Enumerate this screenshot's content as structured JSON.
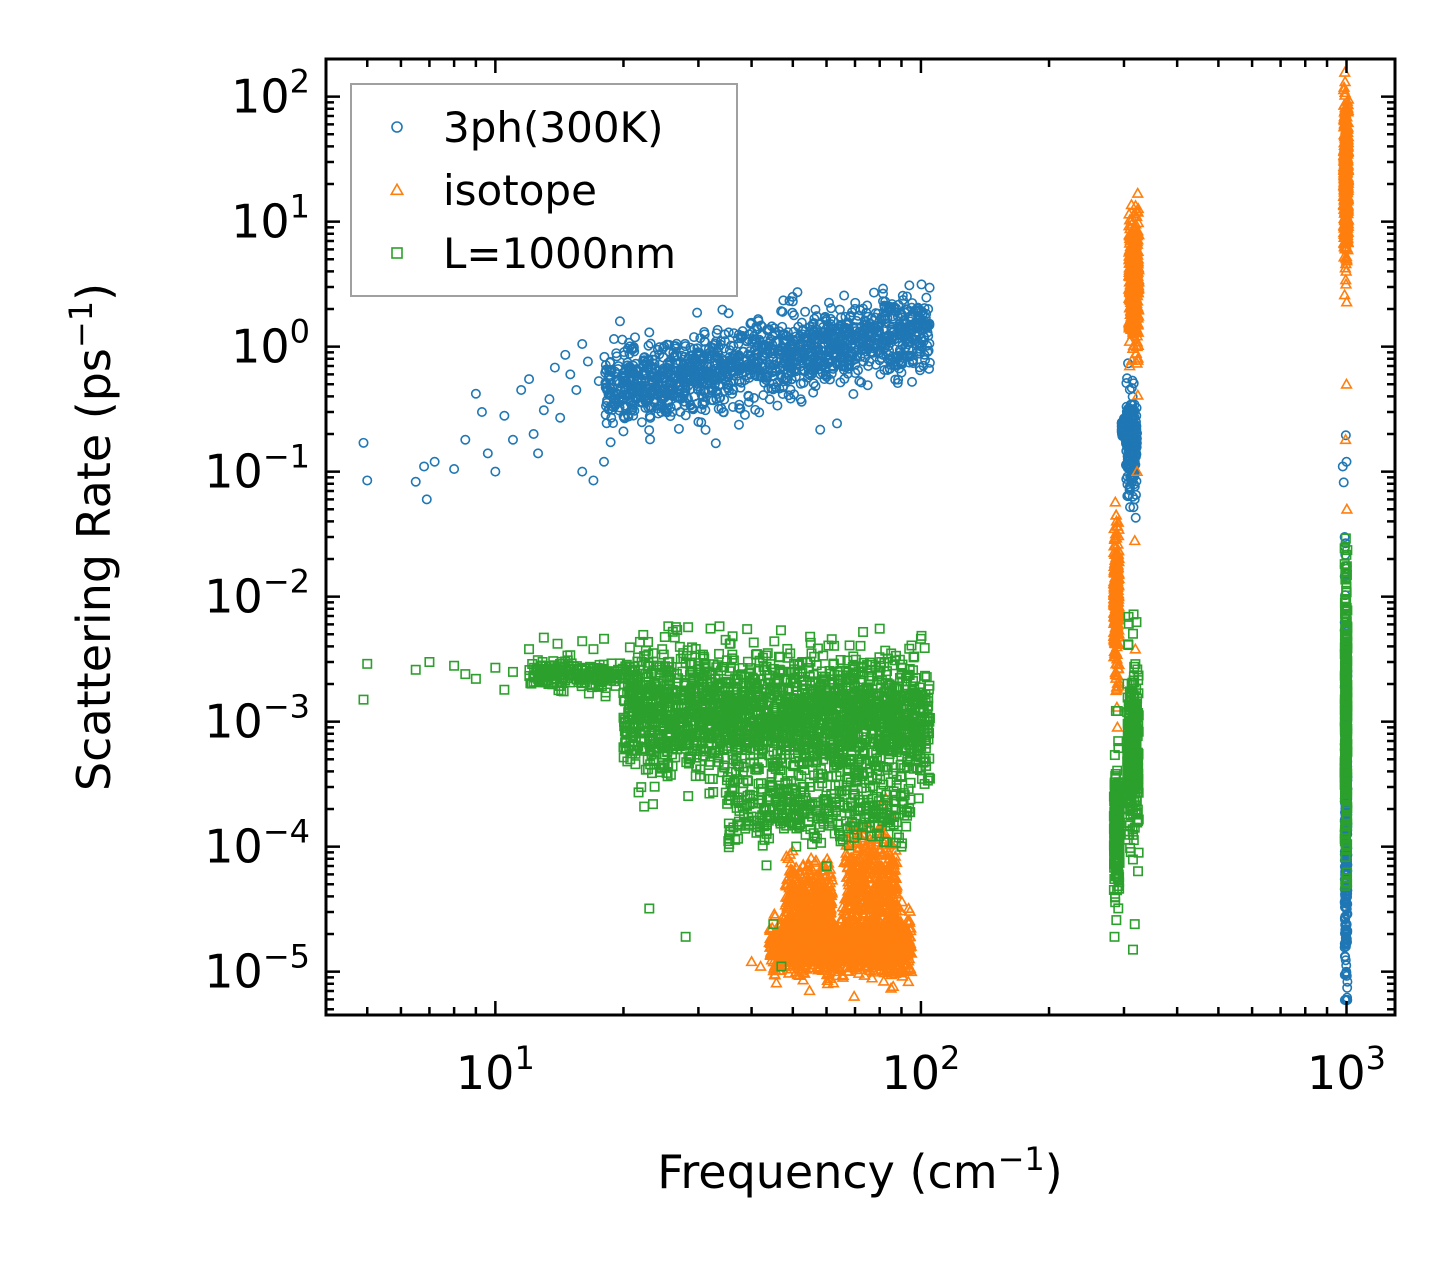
{
  "chart_data": {
    "type": "scatter",
    "xscale": "log",
    "yscale": "log",
    "xlabel": "Frequency",
    "xlabel_unit": "cm",
    "xlabel_exp": "−1",
    "ylabel": "Scattering Rate",
    "ylabel_unit": "ps",
    "ylabel_exp": "−1",
    "xlim": [
      4,
      1300
    ],
    "ylim": [
      4.5e-06,
      200
    ],
    "xticks": [
      {
        "value": 10,
        "base": "10",
        "exp": "1"
      },
      {
        "value": 100,
        "base": "10",
        "exp": "2"
      },
      {
        "value": 1000,
        "base": "10",
        "exp": "3"
      }
    ],
    "yticks": [
      {
        "value": 1e-05,
        "base": "10",
        "exp": "−5"
      },
      {
        "value": 0.0001,
        "base": "10",
        "exp": "−4"
      },
      {
        "value": 0.001,
        "base": "10",
        "exp": "−3"
      },
      {
        "value": 0.01,
        "base": "10",
        "exp": "−2"
      },
      {
        "value": 0.1,
        "base": "10",
        "exp": "−1"
      },
      {
        "value": 1,
        "base": "10",
        "exp": "0"
      },
      {
        "value": 10,
        "base": "10",
        "exp": "1"
      },
      {
        "value": 100,
        "base": "10",
        "exp": "2"
      }
    ],
    "legend_position": "top-left",
    "series": [
      {
        "name": "3ph(300K)",
        "marker": "circle",
        "color": "#1f77b4",
        "points": [
          [
            4.9,
            0.17
          ],
          [
            5.0,
            0.085
          ],
          [
            6.5,
            0.083
          ],
          [
            6.8,
            0.11
          ],
          [
            7.2,
            0.12
          ],
          [
            6.9,
            0.06
          ],
          [
            8.0,
            0.105
          ],
          [
            8.5,
            0.18
          ],
          [
            9.0,
            0.42
          ],
          [
            9.3,
            0.3
          ],
          [
            9.6,
            0.14
          ],
          [
            10.0,
            0.1
          ],
          [
            10.5,
            0.28
          ],
          [
            11.0,
            0.18
          ],
          [
            11.5,
            0.45
          ],
          [
            12.0,
            0.55
          ],
          [
            12.3,
            0.2
          ],
          [
            12.6,
            0.14
          ],
          [
            13.0,
            0.31
          ],
          [
            13.4,
            0.38
          ],
          [
            13.8,
            0.68
          ],
          [
            14.2,
            0.27
          ],
          [
            14.6,
            0.86
          ],
          [
            15.0,
            0.6
          ],
          [
            15.5,
            0.45
          ],
          [
            16.0,
            1.05
          ],
          [
            16.5,
            0.76
          ],
          [
            16.0,
            0.1
          ],
          [
            17.0,
            0.085
          ],
          [
            17.5,
            0.53
          ],
          [
            18.0,
            0.12
          ],
          [
            18.5,
            0.65
          ],
          [
            19.0,
            1.15
          ],
          [
            20.0,
            0.21
          ],
          [
            21.0,
            0.95
          ],
          [
            22.0,
            0.48
          ],
          [
            23.0,
            1.3
          ],
          [
            25.0,
            0.39
          ],
          [
            27.0,
            0.22
          ],
          [
            30.0,
            0.25
          ],
          [
            33.0,
            1.1
          ],
          [
            36.0,
            0.42
          ],
          [
            40.0,
            1.55
          ],
          [
            45.0,
            0.5
          ],
          [
            50.0,
            2.3
          ],
          [
            55.0,
            0.62
          ],
          [
            60.0,
            1.6
          ],
          [
            66.0,
            0.7
          ],
          [
            72.0,
            1.95
          ],
          [
            80.0,
            0.9
          ],
          [
            90.0,
            0.62
          ],
          [
            95.0,
            1.7
          ],
          [
            100.0,
            1.9
          ],
          [
            104.0,
            2.0
          ],
          [
            980,
            0.11
          ],
          [
            985,
            0.082
          ],
          [
            990,
            0.03
          ],
          [
            992,
            0.025
          ],
          [
            995,
            0.015
          ],
          [
            998,
            0.008
          ],
          [
            1000,
            0.12
          ],
          [
            310,
            0.052
          ],
          [
            318,
            0.06
          ]
        ],
        "bands": [
          {
            "x": [
              18,
              105
            ],
            "y_log_center": [
              -0.35,
              0.15
            ],
            "y_log_spread": 0.28,
            "count": 1500
          },
          {
            "x": [
              296,
              303
            ],
            "y_log_center": [
              -0.65,
              -0.65
            ],
            "y_log_spread": 0.06,
            "count": 80
          },
          {
            "x": [
              303,
              322
            ],
            "y_log_center": [
              -0.75,
              -0.75
            ],
            "y_log_spread": 0.35,
            "count": 220
          },
          {
            "x": [
              990,
              1005
            ],
            "y_log_center": [
              -3.6,
              -3.6
            ],
            "y_log_spread": 1.4,
            "count": 420
          }
        ]
      },
      {
        "name": "isotope",
        "marker": "triangle",
        "color": "#ff7f0e",
        "points": [
          [
            40.0,
            1.2e-05
          ],
          [
            42.0,
            1.1e-05
          ],
          [
            55.0,
            6e-05
          ],
          [
            58.0,
            3e-05
          ],
          [
            76.0,
            0.00014
          ],
          [
            88.0,
            2.5e-05
          ],
          [
            90.0,
            1.05e-05
          ],
          [
            95.0,
            1e-05
          ],
          [
            318,
            0.028
          ],
          [
            322,
            0.1
          ],
          [
            319,
            0.0038
          ],
          [
            1000,
            0.5
          ],
          [
            995,
            0.18
          ],
          [
            1002,
            0.05
          ]
        ],
        "bands": [
          {
            "x": [
              44,
              95
            ],
            "y_log_center": [
              -4.8,
              -4.8
            ],
            "y_log_spread": 0.2,
            "count": 1200
          },
          {
            "x": [
              48,
              62
            ],
            "y_log_center": [
              -4.5,
              -4.5
            ],
            "y_log_spread": 0.35,
            "count": 400
          },
          {
            "x": [
              66,
              88
            ],
            "y_log_center": [
              -4.35,
              -4.35
            ],
            "y_log_spread": 0.45,
            "count": 450
          },
          {
            "x": [
              284,
              292
            ],
            "y_log_center": [
              -2.05,
              -2.05
            ],
            "y_log_spread": 0.55,
            "count": 260
          },
          {
            "x": [
              308,
              325
            ],
            "y_log_center": [
              0.5,
              0.5
            ],
            "y_log_spread": 0.5,
            "count": 320
          },
          {
            "x": [
              985,
              1010
            ],
            "y_log_center": [
              1.3,
              1.3
            ],
            "y_log_spread": 0.55,
            "count": 420
          }
        ]
      },
      {
        "name": "L=1000nm",
        "marker": "square",
        "color": "#2ca02c",
        "points": [
          [
            4.9,
            0.0015
          ],
          [
            5.0,
            0.0029
          ],
          [
            6.5,
            0.0026
          ],
          [
            7.0,
            0.003
          ],
          [
            8.0,
            0.0028
          ],
          [
            8.5,
            0.0024
          ],
          [
            9.0,
            0.0022
          ],
          [
            10.0,
            0.0027
          ],
          [
            10.5,
            0.0018
          ],
          [
            11.0,
            0.0025
          ],
          [
            12.0,
            0.0038
          ],
          [
            13.0,
            0.0047
          ],
          [
            14.0,
            0.0042
          ],
          [
            15.0,
            0.0034
          ],
          [
            16.0,
            0.0044
          ],
          [
            17.0,
            0.0038
          ],
          [
            18.0,
            0.0046
          ],
          [
            23.0,
            3.2e-05
          ],
          [
            28.0,
            1.9e-05
          ],
          [
            45.0,
            2.4e-05
          ],
          [
            47.0,
            1.1e-05
          ],
          [
            100.0,
            0.0046
          ],
          [
            105.0,
            0.00035
          ],
          [
            90.0,
            0.0001
          ],
          [
            285,
            1.9e-05
          ],
          [
            315,
            1.5e-05
          ],
          [
            318,
            2.4e-05
          ]
        ],
        "bands": [
          {
            "x": [
              12,
              20
            ],
            "y_log_center": [
              -2.6,
              -2.65
            ],
            "y_log_spread": 0.1,
            "count": 200
          },
          {
            "x": [
              20,
              105
            ],
            "y_log_center": [
              -2.9,
              -3.0
            ],
            "y_log_spread": 0.45,
            "count": 2200
          },
          {
            "x": [
              35,
              95
            ],
            "y_log_center": [
              -3.7,
              -3.7
            ],
            "y_log_spread": 0.25,
            "count": 350
          },
          {
            "x": [
              284,
              293
            ],
            "y_log_center": [
              -3.85,
              -3.85
            ],
            "y_log_spread": 0.45,
            "count": 240
          },
          {
            "x": [
              305,
              325
            ],
            "y_log_center": [
              -3.25,
              -3.25
            ],
            "y_log_spread": 0.6,
            "count": 320
          },
          {
            "x": [
              990,
              1005
            ],
            "y_log_center": [
              -3.0,
              -3.0
            ],
            "y_log_spread": 0.9,
            "count": 380
          }
        ]
      }
    ]
  }
}
